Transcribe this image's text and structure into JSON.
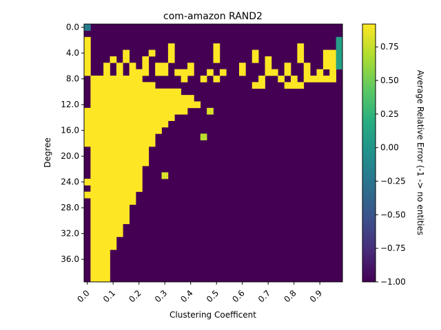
{
  "chart_data": {
    "type": "heatmap",
    "title": "com-amazon RAND2",
    "xlabel": "Clustering Coefficent",
    "ylabel": "Degree",
    "x_ticks": [
      "0.0",
      "0.1",
      "0.2",
      "0.3",
      "0.4",
      "0.5",
      "0.6",
      "0.7",
      "0.8",
      "0.9"
    ],
    "y_ticks": [
      "0.0",
      "4.0",
      "8.0",
      "12.0",
      "16.0",
      "20.0",
      "24.0",
      "28.0",
      "32.0",
      "36.0"
    ],
    "x_range": [
      0.0,
      1.0
    ],
    "y_range": [
      0,
      40
    ],
    "grid": {
      "cols": 40,
      "rows": 40,
      "x_step": 0.025,
      "y_step": 1
    },
    "colorbar": {
      "label": "Average Relative Error (-1 -> no entities",
      "ticks": [
        "0.75",
        "0.50",
        "0.25",
        "0.00",
        "−0.25",
        "−0.50",
        "−0.75",
        "−1.00"
      ],
      "tick_values": [
        0.75,
        0.5,
        0.25,
        0.0,
        -0.25,
        -0.5,
        -0.75,
        -1.0
      ],
      "vmin": -1.0,
      "vmax": 0.92,
      "colormap": "viridis"
    },
    "background_value": -1.0,
    "fill_value": 0.92,
    "boundary": {
      "note": "last column index (0-based) containing data, per row of degree",
      "last_col": [
        0,
        0,
        0,
        0,
        0,
        1,
        2,
        3,
        8,
        10,
        14,
        16,
        17,
        15,
        13,
        12,
        11,
        10,
        10,
        9,
        9,
        9,
        8,
        8,
        8,
        8,
        7,
        7,
        6,
        6,
        6,
        5,
        5,
        4,
        4,
        3,
        3,
        3,
        3,
        3
      ],
      "col0_missing_rows": [
        8,
        9,
        10,
        11,
        12,
        19,
        20,
        21,
        22,
        23,
        25,
        27,
        28,
        29,
        30,
        31,
        32,
        33,
        34,
        35,
        36,
        37,
        38,
        39
      ],
      "missing_cells": [
        [
          12,
          30
        ],
        [
          13,
          29
        ]
      ]
    },
    "sparse_cells": [
      [
        0,
        0,
        -0.2
      ],
      [
        2,
        0,
        0.92
      ],
      [
        3,
        0,
        0.92
      ],
      [
        4,
        0,
        0.92
      ],
      [
        5,
        0,
        0.92
      ],
      [
        6,
        0,
        0.92
      ],
      [
        7,
        0,
        0.92
      ],
      [
        4,
        6,
        0.92
      ],
      [
        5,
        6,
        0.92
      ],
      [
        6,
        3,
        0.92
      ],
      [
        7,
        3,
        0.92
      ],
      [
        5,
        4,
        0.92
      ],
      [
        6,
        5,
        0.92
      ],
      [
        7,
        5,
        0.92
      ],
      [
        4,
        10,
        0.92
      ],
      [
        6,
        7,
        0.92
      ],
      [
        7,
        7,
        0.92
      ],
      [
        7,
        8,
        0.92
      ],
      [
        5,
        9,
        0.92
      ],
      [
        6,
        9,
        0.92
      ],
      [
        7,
        9,
        0.92
      ],
      [
        6,
        11,
        0.92
      ],
      [
        7,
        11,
        0.92
      ],
      [
        6,
        12,
        0.92
      ],
      [
        7,
        12,
        0.92
      ],
      [
        3,
        13,
        0.92
      ],
      [
        4,
        13,
        0.92
      ],
      [
        5,
        13,
        0.92
      ],
      [
        7,
        14,
        0.92
      ],
      [
        7,
        15,
        0.92
      ],
      [
        6,
        16,
        0.92
      ],
      [
        7,
        16,
        0.92
      ],
      [
        3,
        20,
        0.92
      ],
      [
        4,
        20,
        0.92
      ],
      [
        5,
        20,
        0.92
      ],
      [
        7,
        19,
        0.92
      ],
      [
        7,
        21,
        0.92
      ],
      [
        4,
        26,
        0.92
      ],
      [
        5,
        26,
        0.92
      ],
      [
        6,
        24,
        0.92
      ],
      [
        7,
        24,
        0.92
      ],
      [
        5,
        28,
        0.92
      ],
      [
        6,
        28,
        0.92
      ],
      [
        7,
        28,
        0.92
      ],
      [
        7,
        29,
        0.92
      ],
      [
        6,
        31,
        0.92
      ],
      [
        7,
        31,
        0.92
      ],
      [
        3,
        33,
        0.92
      ],
      [
        4,
        33,
        0.92
      ],
      [
        5,
        33,
        0.92
      ],
      [
        6,
        34,
        0.92
      ],
      [
        7,
        34,
        0.92
      ],
      [
        7,
        36,
        0.92
      ],
      [
        4,
        38,
        0.92
      ],
      [
        5,
        38,
        0.92
      ],
      [
        6,
        38,
        0.92
      ],
      [
        7,
        38,
        0.92
      ],
      [
        4,
        37,
        0.92
      ],
      [
        5,
        37,
        0.92
      ],
      [
        6,
        37,
        0.92
      ],
      [
        8,
        34,
        0.92
      ],
      [
        8,
        35,
        0.92
      ],
      [
        8,
        36,
        0.92
      ],
      [
        8,
        37,
        0.92
      ],
      [
        8,
        38,
        0.92
      ],
      [
        8,
        15,
        0.92
      ],
      [
        8,
        18,
        0.92
      ],
      [
        8,
        20,
        0.92
      ],
      [
        9,
        31,
        0.92
      ],
      [
        9,
        32,
        0.92
      ],
      [
        9,
        33,
        0.92
      ],
      [
        8,
        32,
        0.92
      ],
      [
        8,
        30,
        0.92
      ],
      [
        9,
        26,
        0.92
      ],
      [
        9,
        27,
        0.92
      ],
      [
        8,
        27,
        0.92
      ],
      [
        2,
        39,
        0.08
      ],
      [
        3,
        39,
        0.08
      ],
      [
        4,
        39,
        0.08
      ],
      [
        5,
        39,
        0.08
      ],
      [
        6,
        39,
        0.08
      ]
    ],
    "light_cells": [
      [
        17,
        18,
        0.72
      ],
      [
        13,
        19,
        0.82
      ],
      [
        23,
        12,
        0.82
      ],
      [
        24,
        0,
        0.92
      ]
    ]
  }
}
